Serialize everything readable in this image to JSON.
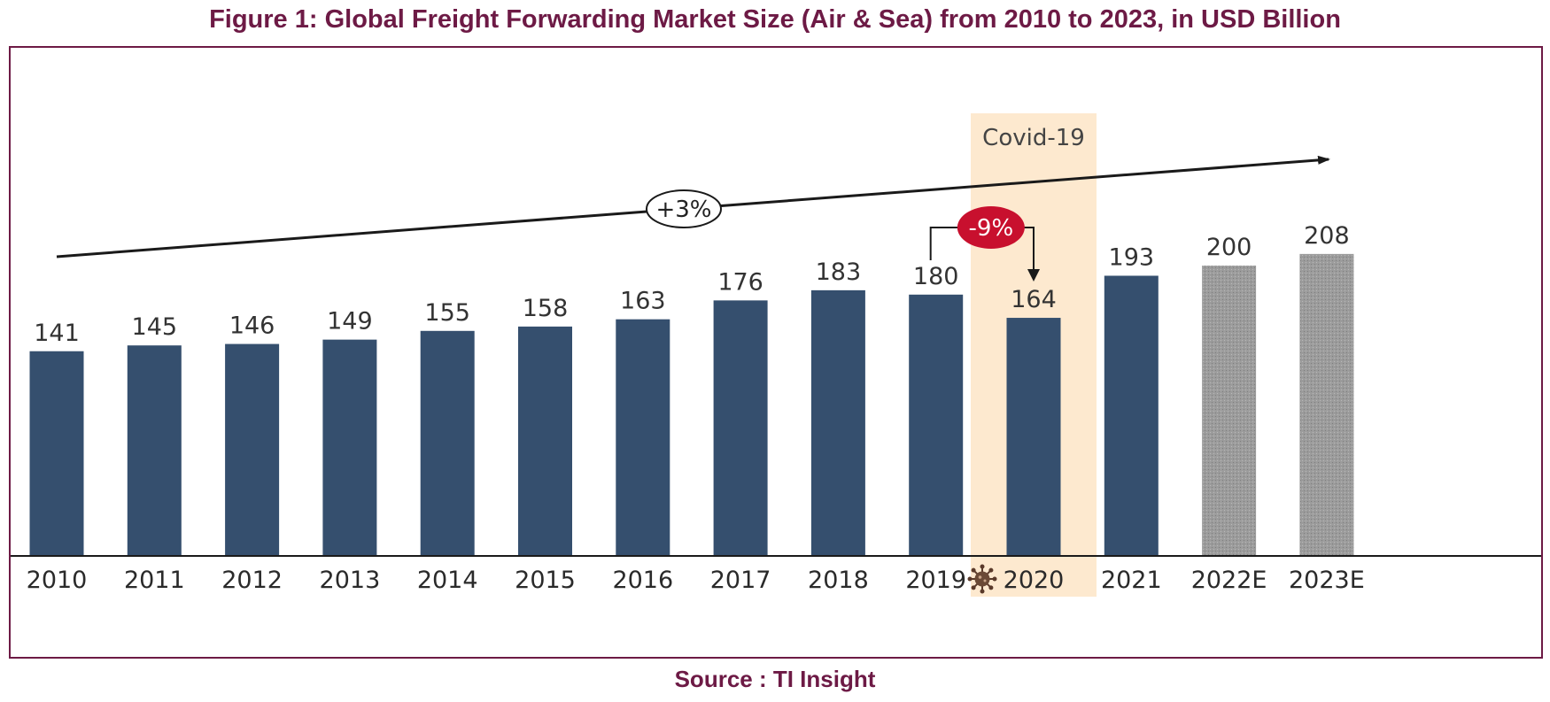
{
  "chart_data": {
    "type": "bar",
    "title": "Figure 1: Global Freight Forwarding Market Size (Air & Sea) from 2010 to 2023, in USD Billion",
    "source": "Source : TI Insight",
    "categories": [
      "2010",
      "2011",
      "2012",
      "2013",
      "2014",
      "2015",
      "2016",
      "2017",
      "2018",
      "2019",
      "2020",
      "2021",
      "2022E",
      "2023E"
    ],
    "values": [
      141,
      145,
      146,
      149,
      155,
      158,
      163,
      176,
      183,
      180,
      164,
      193,
      200,
      208
    ],
    "estimated": [
      false,
      false,
      false,
      false,
      false,
      false,
      false,
      false,
      false,
      false,
      false,
      false,
      true,
      true
    ],
    "ylim": [
      0,
      240
    ],
    "grid": false,
    "legend": "none",
    "annotations": {
      "highlight_band": {
        "category": "2020",
        "label": "Covid-19"
      },
      "trend_arrow": {
        "label": "+3%"
      },
      "drop": {
        "from": "2019",
        "to": "2020",
        "label": "-9%"
      },
      "virus_icon_category": "2020"
    },
    "colors": {
      "actual_bar": "#354f6e",
      "estimate_bar": "#999999",
      "highlight_band": "#fde9cf",
      "drop_badge": "#c8102e",
      "title": "#6d1a45"
    }
  }
}
